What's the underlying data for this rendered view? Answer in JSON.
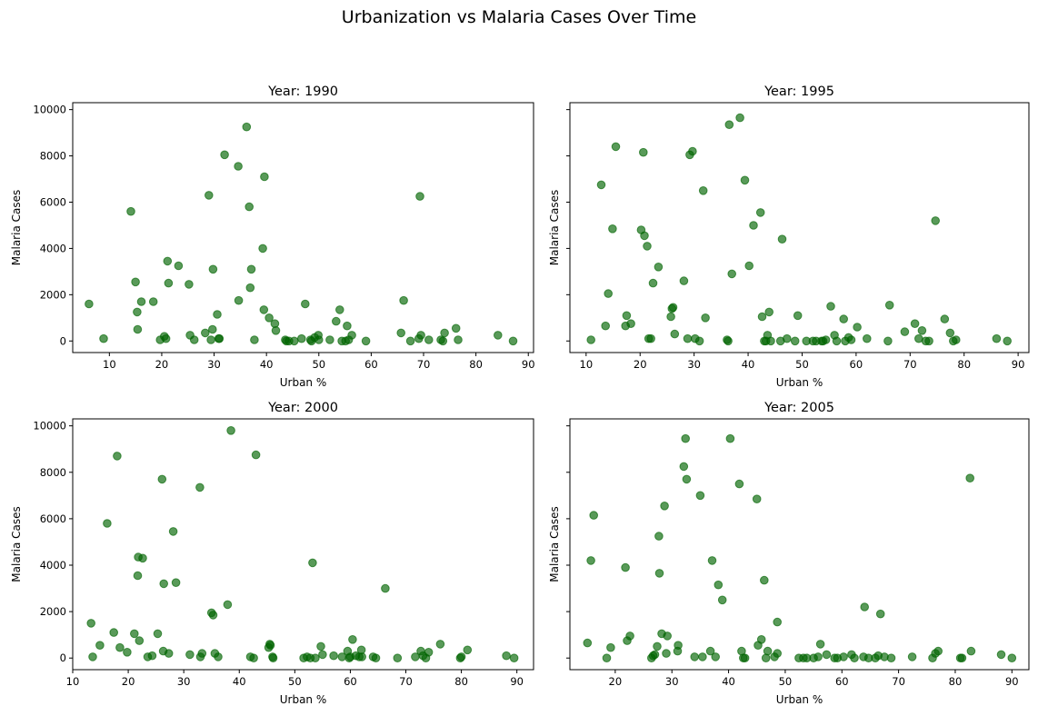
{
  "figure": {
    "title": "Urbanization vs Malaria Cases Over Time",
    "marker_color": "#006400",
    "marker_opacity": 0.65
  },
  "chart_data": [
    {
      "type": "scatter",
      "title": "Year: 1990",
      "xlabel": "Urban %",
      "ylabel": "Malaria Cases",
      "xlim": [
        3,
        91
      ],
      "ylim": [
        -500,
        10300
      ],
      "xticks": [
        10,
        20,
        30,
        40,
        50,
        60,
        70,
        80,
        90
      ],
      "yticks": [
        0,
        2000,
        4000,
        6000,
        8000,
        10000
      ],
      "show_y_tick_labels": true,
      "grid": false,
      "x": [
        6.1,
        8.9,
        14.1,
        15.0,
        15.3,
        15.4,
        16.1,
        18.4,
        19.7,
        20.5,
        20.8,
        21.1,
        21.3,
        23.2,
        25.2,
        25.4,
        26.2,
        28.3,
        29.0,
        29.4,
        29.7,
        29.8,
        30.6,
        30.9,
        31.0,
        32.0,
        34.6,
        34.7,
        36.2,
        36.7,
        36.9,
        37.1,
        37.7,
        39.3,
        39.5,
        39.6,
        40.5,
        41.6,
        41.8,
        43.6,
        43.8,
        44.3,
        45.3,
        46.7,
        47.4,
        48.4,
        48.6,
        49.2,
        49.9,
        50.0,
        52.1,
        53.3,
        54.0,
        54.4,
        55.1,
        55.4,
        55.7,
        56.3,
        59.0,
        65.7,
        66.2,
        67.5,
        69.1,
        69.3,
        69.5,
        71.0,
        73.3,
        73.7,
        74.0,
        76.2,
        76.6,
        84.2,
        87.1
      ],
      "y": [
        1600,
        100,
        5600,
        2550,
        1250,
        500,
        1700,
        1700,
        50,
        200,
        100,
        3450,
        2500,
        3250,
        2450,
        250,
        50,
        350,
        6300,
        50,
        500,
        3100,
        1150,
        100,
        100,
        8050,
        7550,
        1750,
        9250,
        5800,
        2300,
        3100,
        50,
        4000,
        1350,
        7100,
        1000,
        750,
        450,
        50,
        0,
        0,
        0,
        100,
        1600,
        50,
        0,
        150,
        250,
        50,
        50,
        850,
        1350,
        0,
        0,
        650,
        50,
        250,
        0,
        350,
        1750,
        0,
        100,
        6250,
        250,
        50,
        50,
        0,
        350,
        550,
        50,
        250,
        0
      ]
    },
    {
      "type": "scatter",
      "title": "Year: 1995",
      "xlabel": "Urban %",
      "ylabel": "Malaria Cases",
      "xlim": [
        7,
        92
      ],
      "ylim": [
        -500,
        10300
      ],
      "xticks": [
        10,
        20,
        30,
        40,
        50,
        60,
        70,
        80,
        90
      ],
      "yticks": [
        0,
        2000,
        4000,
        6000,
        8000,
        10000
      ],
      "show_y_tick_labels": false,
      "grid": false,
      "x": [
        10.9,
        12.8,
        13.6,
        14.1,
        14.9,
        15.5,
        17.3,
        17.5,
        18.3,
        20.2,
        20.6,
        20.8,
        21.3,
        21.6,
        22.0,
        22.4,
        23.4,
        25.7,
        25.9,
        26.1,
        26.4,
        28.1,
        28.8,
        29.2,
        29.7,
        30.2,
        31.0,
        31.7,
        32.1,
        36.1,
        36.3,
        36.5,
        37.0,
        38.5,
        39.4,
        40.2,
        41.0,
        42.3,
        42.6,
        43.0,
        43.3,
        43.6,
        43.9,
        44.2,
        46.0,
        46.3,
        47.2,
        48.7,
        49.2,
        50.8,
        52.0,
        52.6,
        53.6,
        53.9,
        54.4,
        55.3,
        56.0,
        56.4,
        57.7,
        58.0,
        58.6,
        59.1,
        60.2,
        62.0,
        65.9,
        66.2,
        69.0,
        70.9,
        71.6,
        72.2,
        72.9,
        73.5,
        74.7,
        76.4,
        77.4,
        78.0,
        78.5,
        86.0,
        88.0
      ],
      "y": [
        50,
        6750,
        650,
        2050,
        4850,
        8400,
        650,
        1100,
        750,
        4800,
        8150,
        4550,
        4100,
        100,
        100,
        2500,
        3200,
        1050,
        1400,
        1450,
        300,
        2600,
        100,
        8050,
        8200,
        100,
        0,
        6500,
        1000,
        50,
        0,
        9350,
        2900,
        9650,
        6950,
        3250,
        5000,
        5550,
        1050,
        0,
        0,
        250,
        1250,
        0,
        0,
        4400,
        100,
        0,
        1100,
        0,
        0,
        0,
        0,
        0,
        50,
        1500,
        250,
        0,
        950,
        0,
        150,
        50,
        600,
        100,
        0,
        1550,
        400,
        750,
        100,
        450,
        0,
        0,
        5200,
        950,
        350,
        0,
        50,
        100,
        0
      ]
    },
    {
      "type": "scatter",
      "title": "Year: 2000",
      "xlabel": "Urban %",
      "ylabel": "Malaria Cases",
      "xlim": [
        10,
        93
      ],
      "ylim": [
        -500,
        10300
      ],
      "xticks": [
        10,
        20,
        30,
        40,
        50,
        60,
        70,
        80,
        90
      ],
      "yticks": [
        0,
        2000,
        4000,
        6000,
        8000,
        10000
      ],
      "show_y_tick_labels": true,
      "grid": false,
      "x": [
        13.3,
        13.6,
        14.9,
        16.2,
        17.4,
        18.0,
        18.5,
        19.8,
        21.1,
        21.7,
        21.8,
        22.0,
        22.6,
        23.5,
        24.3,
        25.3,
        26.1,
        26.3,
        26.4,
        27.3,
        28.1,
        28.6,
        31.1,
        32.9,
        33.3,
        33.0,
        35.0,
        35.3,
        35.6,
        36.2,
        37.9,
        38.5,
        42.0,
        42.6,
        43.0,
        45.3,
        45.6,
        45.5,
        46.0,
        46.1,
        51.6,
        52.2,
        52.8,
        53.2,
        53.7,
        54.7,
        55.0,
        57.0,
        58.5,
        59.5,
        59.8,
        60.0,
        60.4,
        61.0,
        61.6,
        62.0,
        62.1,
        64.1,
        64.6,
        66.3,
        68.5,
        71.7,
        72.7,
        73.1,
        73.6,
        74.1,
        76.2,
        79.8,
        80.0,
        81.1,
        88.1,
        89.5
      ],
      "y": [
        1500,
        50,
        550,
        5800,
        1100,
        8700,
        450,
        250,
        1050,
        3550,
        4350,
        750,
        4300,
        50,
        100,
        1050,
        7700,
        300,
        3200,
        200,
        5450,
        3250,
        150,
        7350,
        200,
        50,
        1950,
        1850,
        200,
        50,
        2300,
        9800,
        50,
        0,
        8750,
        450,
        550,
        600,
        50,
        0,
        0,
        50,
        0,
        4100,
        0,
        500,
        150,
        100,
        50,
        300,
        0,
        50,
        800,
        100,
        50,
        350,
        50,
        50,
        0,
        3000,
        0,
        50,
        300,
        100,
        0,
        250,
        600,
        0,
        50,
        350,
        100,
        0
      ]
    },
    {
      "type": "scatter",
      "title": "Year: 2005",
      "xlabel": "Urban %",
      "ylabel": "Malaria Cases",
      "xlim": [
        12,
        93
      ],
      "ylim": [
        -500,
        10300
      ],
      "xticks": [
        20,
        30,
        40,
        50,
        60,
        70,
        80,
        90
      ],
      "yticks": [
        0,
        2000,
        4000,
        6000,
        8000,
        10000
      ],
      "show_y_tick_labels": false,
      "grid": false,
      "x": [
        15.1,
        15.7,
        16.2,
        18.5,
        19.2,
        21.8,
        22.1,
        22.6,
        26.4,
        26.7,
        27.0,
        27.4,
        27.7,
        27.8,
        28.2,
        28.7,
        29.0,
        29.2,
        31.0,
        31.1,
        32.1,
        32.4,
        32.6,
        34.0,
        35.0,
        35.4,
        36.8,
        37.1,
        37.7,
        38.2,
        38.9,
        40.3,
        41.9,
        42.3,
        42.6,
        42.9,
        45.0,
        45.2,
        45.8,
        46.3,
        46.6,
        46.9,
        48.1,
        48.6,
        48.6,
        52.4,
        53.2,
        53.8,
        55.0,
        55.8,
        56.2,
        57.3,
        58.7,
        59.2,
        60.3,
        61.7,
        62.2,
        63.8,
        64.0,
        64.7,
        65.9,
        66.4,
        66.8,
        67.5,
        68.7,
        72.4,
        76.0,
        76.5,
        77.0,
        80.9,
        81.2,
        82.6,
        82.8,
        88.1,
        90.0
      ],
      "y": [
        650,
        4200,
        6150,
        0,
        450,
        3900,
        750,
        950,
        0,
        100,
        150,
        500,
        5250,
        3650,
        1050,
        6550,
        200,
        950,
        300,
        550,
        8250,
        9450,
        7700,
        50,
        7000,
        50,
        300,
        4200,
        50,
        3150,
        2500,
        9450,
        7500,
        300,
        0,
        0,
        6850,
        550,
        800,
        3350,
        0,
        300,
        50,
        200,
        1550,
        0,
        0,
        0,
        0,
        50,
        600,
        150,
        0,
        0,
        50,
        150,
        0,
        50,
        2200,
        0,
        0,
        100,
        1900,
        50,
        0,
        50,
        0,
        200,
        300,
        0,
        0,
        7750,
        300,
        150,
        0
      ]
    }
  ]
}
